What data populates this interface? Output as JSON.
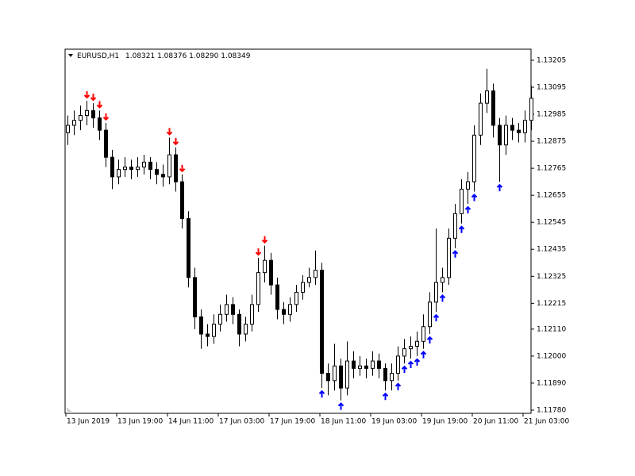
{
  "chart_data": {
    "type": "candlestick",
    "title": "EURUSD,H1",
    "subtitle": "1.08321 1.08376 1.08290 1.08349",
    "open": [
      1.1291,
      1.1294,
      1.1296,
      1.1298,
      1.13,
      1.1297,
      1.1292,
      1.1281,
      1.1273,
      1.1276,
      1.1277,
      1.1276,
      1.1277,
      1.1279,
      1.1276,
      1.1274,
      1.1273,
      1.1282,
      1.1271,
      1.1256,
      1.1232,
      1.1216,
      1.1209,
      1.1208,
      1.1213,
      1.1217,
      1.1221,
      1.1217,
      1.1209,
      1.1213,
      1.1221,
      1.1234,
      1.1239,
      1.1229,
      1.1219,
      1.1217,
      1.1221,
      1.1226,
      1.123,
      1.1232,
      1.1235,
      1.1193,
      1.119,
      1.1196,
      1.1187,
      1.1198,
      1.1195,
      1.1196,
      1.1195,
      1.1198,
      1.1195,
      1.119,
      1.1193,
      1.12,
      1.1203,
      1.1204,
      1.1206,
      1.1212,
      1.1222,
      1.123,
      1.1232,
      1.1248,
      1.1258,
      1.1268,
      1.1271,
      1.129,
      1.1303,
      1.1308,
      1.1294,
      1.1286,
      1.1294,
      1.1292,
      1.1291,
      1.1296
    ],
    "high": [
      1.1298,
      1.13,
      1.1302,
      1.1304,
      1.1303,
      1.13,
      1.1295,
      1.1284,
      1.128,
      1.1281,
      1.128,
      1.1281,
      1.1282,
      1.1281,
      1.1279,
      1.1278,
      1.1289,
      1.1285,
      1.1274,
      1.1259,
      1.1236,
      1.1219,
      1.1213,
      1.1217,
      1.1221,
      1.1225,
      1.1224,
      1.1219,
      1.1216,
      1.1225,
      1.124,
      1.1245,
      1.1242,
      1.1232,
      1.1222,
      1.1224,
      1.1229,
      1.1233,
      1.1236,
      1.1243,
      1.1238,
      1.1197,
      1.1205,
      1.1199,
      1.1206,
      1.1202,
      1.12,
      1.1199,
      1.1202,
      1.1201,
      1.1197,
      1.1197,
      1.1204,
      1.1207,
      1.1208,
      1.121,
      1.1217,
      1.1226,
      1.1252,
      1.1236,
      1.1252,
      1.1262,
      1.1272,
      1.1275,
      1.1294,
      1.1307,
      1.1317,
      1.1311,
      1.1297,
      1.1298,
      1.1297,
      1.1295,
      1.13,
      1.131
    ],
    "low": [
      1.1286,
      1.129,
      1.1292,
      1.1294,
      1.1293,
      1.1288,
      1.1277,
      1.1268,
      1.127,
      1.1273,
      1.1272,
      1.1273,
      1.1274,
      1.1272,
      1.127,
      1.1269,
      1.127,
      1.1267,
      1.1252,
      1.1228,
      1.1211,
      1.1203,
      1.1204,
      1.1205,
      1.121,
      1.1214,
      1.1213,
      1.1204,
      1.1206,
      1.121,
      1.1218,
      1.123,
      1.1225,
      1.1215,
      1.1213,
      1.1214,
      1.1218,
      1.1223,
      1.1228,
      1.1229,
      1.1187,
      1.1184,
      1.1186,
      1.1182,
      1.1184,
      1.1191,
      1.1192,
      1.1191,
      1.1192,
      1.1191,
      1.1186,
      1.1186,
      1.119,
      1.1197,
      1.1199,
      1.12,
      1.1203,
      1.1209,
      1.1218,
      1.1226,
      1.1229,
      1.1244,
      1.1254,
      1.1262,
      1.1267,
      1.1286,
      1.1299,
      1.1289,
      1.1271,
      1.1282,
      1.1288,
      1.1287,
      1.1287,
      1.1292
    ],
    "close": [
      1.1294,
      1.1296,
      1.1298,
      1.13,
      1.1297,
      1.1292,
      1.1281,
      1.1273,
      1.1276,
      1.1277,
      1.1276,
      1.1277,
      1.1279,
      1.1276,
      1.1274,
      1.1273,
      1.1282,
      1.1271,
      1.1256,
      1.1232,
      1.1216,
      1.1209,
      1.1208,
      1.1213,
      1.1217,
      1.1221,
      1.1217,
      1.1209,
      1.1213,
      1.1221,
      1.1234,
      1.1239,
      1.1229,
      1.1219,
      1.1217,
      1.1221,
      1.1226,
      1.123,
      1.1232,
      1.1235,
      1.1193,
      1.119,
      1.1196,
      1.1187,
      1.1198,
      1.1195,
      1.1196,
      1.1195,
      1.1198,
      1.1195,
      1.119,
      1.1193,
      1.12,
      1.1203,
      1.1204,
      1.1206,
      1.1212,
      1.1222,
      1.123,
      1.1232,
      1.1248,
      1.1258,
      1.1268,
      1.1271,
      1.129,
      1.1303,
      1.1308,
      1.1294,
      1.1286,
      1.1294,
      1.1292,
      1.1291,
      1.1296,
      1.1305
    ],
    "sell_signals": [
      3,
      4,
      5,
      6,
      16,
      17,
      18,
      30,
      31
    ],
    "buy_signals": [
      40,
      43,
      50,
      52,
      53,
      54,
      55,
      56,
      57,
      58,
      59,
      61,
      62,
      63,
      64,
      68
    ],
    "sell_color": "#ff0000",
    "buy_color": "#0000ff",
    "ylim": [
      1.11767,
      1.1325
    ],
    "yticks": [
      1.13205,
      1.13095,
      1.12985,
      1.12875,
      1.12765,
      1.12655,
      1.12545,
      1.12435,
      1.12325,
      1.12215,
      {
        "value": 1.1211,
        "label": "1.12110"
      },
      {
        "value": 1.12,
        "label": "1.12000"
      },
      {
        "value": 1.1189,
        "label": "1.11890"
      },
      {
        "value": 1.1178,
        "label": "1.11780"
      }
    ],
    "xticks": [
      {
        "value": 0,
        "label": "13 Jun 2019"
      },
      {
        "value": 8,
        "label": "13 Jun 19:00"
      },
      {
        "value": 16,
        "label": "14 Jun 11:00"
      },
      {
        "value": 24,
        "label": "17 Jun 03:00"
      },
      {
        "value": 32,
        "label": "17 Jun 19:00"
      },
      {
        "value": 40,
        "label": "18 Jun 11:00"
      },
      {
        "value": 48,
        "label": "19 Jun 03:00"
      },
      {
        "value": 56,
        "label": "19 Jun 19:00"
      },
      {
        "value": 64,
        "label": "20 Jun 11:00"
      },
      {
        "value": 72,
        "label": "21 Jun 03:00"
      }
    ]
  }
}
